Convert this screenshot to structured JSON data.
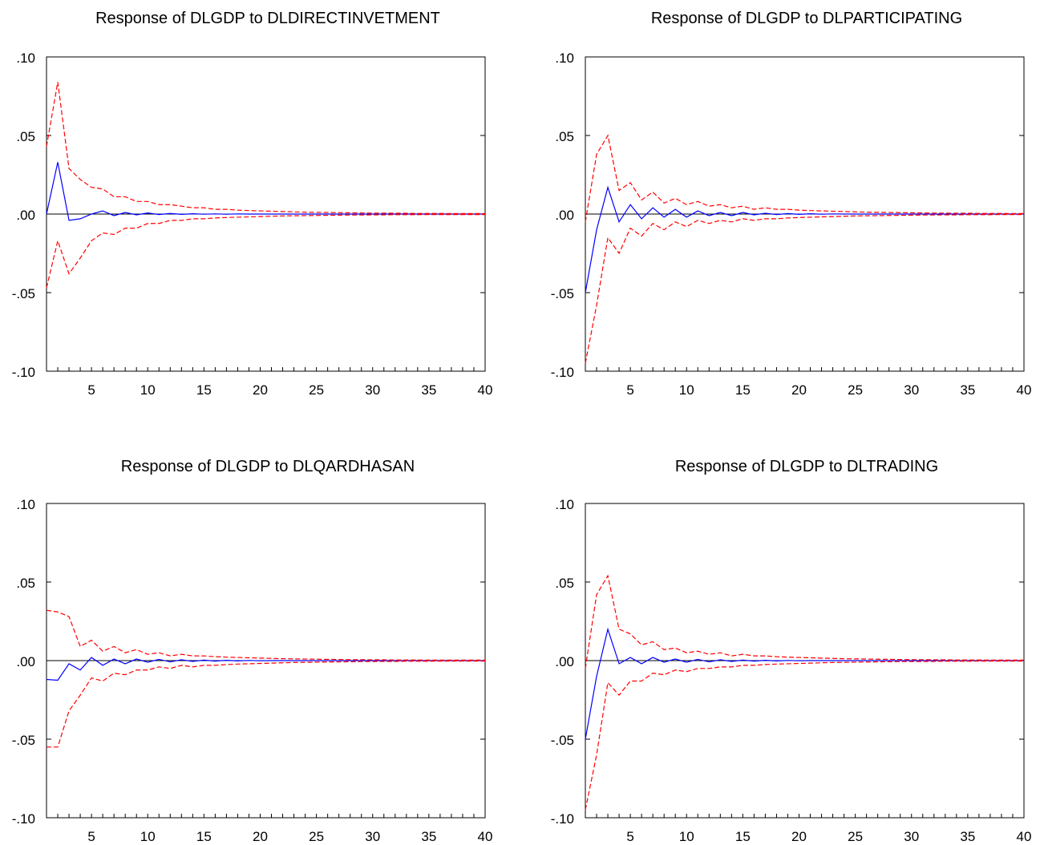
{
  "colors": {
    "response": "#0000ff",
    "band": "#ff0000",
    "zero_line": "#000000",
    "frame": "#000000"
  },
  "chart_data": [
    {
      "type": "line",
      "title": "Response of DLGDP to DLDIRECTINVETMENT",
      "xlim": [
        1,
        40
      ],
      "ylim": [
        -0.1,
        0.1
      ],
      "x_ticks": [
        5,
        10,
        15,
        20,
        25,
        30,
        35,
        40
      ],
      "y_ticks": [
        ".10",
        ".05",
        ".00",
        "-.05",
        "-.10"
      ],
      "series": [
        {
          "role": "response",
          "style": "solid",
          "values": [
            0.0,
            0.033,
            -0.004,
            -0.003,
            0.0,
            0.002,
            -0.001,
            0.001,
            -0.0005,
            0.0007,
            -0.0003,
            0.0004,
            -0.0002,
            0.0002,
            -0.0001,
            0.0001,
            -0.0001,
            0.0001,
            0.0,
            0.0,
            0.0,
            0.0,
            0.0,
            0.0,
            0.0,
            0.0,
            0.0,
            0.0,
            0.0,
            0.0,
            0.0,
            0.0,
            0.0,
            0.0,
            0.0,
            0.0,
            0.0,
            0.0,
            0.0,
            0.0
          ]
        },
        {
          "role": "upper",
          "style": "dashed",
          "values": [
            0.043,
            0.084,
            0.029,
            0.022,
            0.017,
            0.016,
            0.011,
            0.011,
            0.008,
            0.008,
            0.006,
            0.006,
            0.005,
            0.004,
            0.004,
            0.003,
            0.003,
            0.0025,
            0.0022,
            0.002,
            0.0018,
            0.0016,
            0.0014,
            0.0012,
            0.0011,
            0.001,
            0.0009,
            0.0008,
            0.0007,
            0.0006,
            0.0006,
            0.0005,
            0.0005,
            0.0004,
            0.0004,
            0.0004,
            0.0003,
            0.0003,
            0.0003,
            0.0003
          ]
        },
        {
          "role": "lower",
          "style": "dashed",
          "values": [
            -0.047,
            -0.017,
            -0.038,
            -0.028,
            -0.017,
            -0.012,
            -0.013,
            -0.009,
            -0.009,
            -0.006,
            -0.006,
            -0.004,
            -0.004,
            -0.003,
            -0.003,
            -0.0025,
            -0.0022,
            -0.002,
            -0.0018,
            -0.0016,
            -0.0014,
            -0.0012,
            -0.0011,
            -0.001,
            -0.0009,
            -0.0008,
            -0.0007,
            -0.0006,
            -0.0006,
            -0.0005,
            -0.0005,
            -0.0004,
            -0.0004,
            -0.0004,
            -0.0003,
            -0.0003,
            -0.0003,
            -0.0003,
            -0.0003,
            -0.0003
          ]
        }
      ]
    },
    {
      "type": "line",
      "title": "Response of DLGDP to DLPARTICIPATING",
      "xlim": [
        1,
        40
      ],
      "ylim": [
        -0.1,
        0.1
      ],
      "x_ticks": [
        5,
        10,
        15,
        20,
        25,
        30,
        35,
        40
      ],
      "y_ticks": [
        ".10",
        ".05",
        ".00",
        "-.05",
        "-.10"
      ],
      "series": [
        {
          "role": "response",
          "style": "solid",
          "values": [
            -0.05,
            -0.01,
            0.017,
            -0.005,
            0.006,
            -0.003,
            0.004,
            -0.002,
            0.003,
            -0.002,
            0.002,
            -0.001,
            0.001,
            -0.001,
            0.001,
            -0.0005,
            0.0005,
            -0.0003,
            0.0003,
            -0.0002,
            0.0002,
            -0.0001,
            0.0001,
            0.0,
            0.0,
            0.0,
            0.0,
            0.0,
            0.0,
            0.0,
            0.0,
            0.0,
            0.0,
            0.0,
            0.0,
            0.0,
            0.0,
            0.0,
            0.0,
            0.0
          ]
        },
        {
          "role": "upper",
          "style": "dashed",
          "values": [
            -0.005,
            0.038,
            0.05,
            0.015,
            0.02,
            0.009,
            0.014,
            0.007,
            0.01,
            0.006,
            0.008,
            0.005,
            0.006,
            0.004,
            0.005,
            0.003,
            0.004,
            0.003,
            0.003,
            0.0025,
            0.0022,
            0.002,
            0.0018,
            0.0016,
            0.0014,
            0.0012,
            0.0011,
            0.001,
            0.0009,
            0.0008,
            0.0007,
            0.0006,
            0.0006,
            0.0005,
            0.0005,
            0.0004,
            0.0004,
            0.0004,
            0.0003,
            0.0003
          ]
        },
        {
          "role": "lower",
          "style": "dashed",
          "values": [
            -0.095,
            -0.058,
            -0.015,
            -0.025,
            -0.009,
            -0.014,
            -0.006,
            -0.01,
            -0.005,
            -0.008,
            -0.004,
            -0.006,
            -0.004,
            -0.005,
            -0.003,
            -0.004,
            -0.003,
            -0.003,
            -0.0025,
            -0.0022,
            -0.002,
            -0.0018,
            -0.0016,
            -0.0014,
            -0.0012,
            -0.0011,
            -0.001,
            -0.0009,
            -0.0008,
            -0.0007,
            -0.0006,
            -0.0006,
            -0.0005,
            -0.0005,
            -0.0004,
            -0.0004,
            -0.0004,
            -0.0003,
            -0.0003,
            -0.0003
          ]
        }
      ]
    },
    {
      "type": "line",
      "title": "Response of DLGDP to DLQARDHASAN",
      "xlim": [
        1,
        40
      ],
      "ylim": [
        -0.1,
        0.1
      ],
      "x_ticks": [
        5,
        10,
        15,
        20,
        25,
        30,
        35,
        40
      ],
      "y_ticks": [
        ".10",
        ".05",
        ".00",
        "-.05",
        "-.10"
      ],
      "series": [
        {
          "role": "response",
          "style": "solid",
          "values": [
            -0.012,
            -0.0125,
            -0.002,
            -0.006,
            0.002,
            -0.003,
            0.001,
            -0.002,
            0.001,
            -0.001,
            0.0008,
            -0.0008,
            0.0005,
            -0.0005,
            0.0003,
            -0.0003,
            0.0002,
            -0.0002,
            0.0001,
            -0.0001,
            0.0,
            0.0,
            0.0,
            0.0,
            0.0,
            0.0,
            0.0,
            0.0,
            0.0,
            0.0,
            0.0,
            0.0,
            0.0,
            0.0,
            0.0,
            0.0,
            0.0,
            0.0,
            0.0,
            0.0
          ]
        },
        {
          "role": "upper",
          "style": "dashed",
          "values": [
            0.032,
            0.031,
            0.028,
            0.009,
            0.013,
            0.006,
            0.009,
            0.005,
            0.007,
            0.004,
            0.005,
            0.003,
            0.004,
            0.003,
            0.003,
            0.0025,
            0.0022,
            0.002,
            0.0018,
            0.0016,
            0.0014,
            0.0012,
            0.0011,
            0.001,
            0.0009,
            0.0008,
            0.0007,
            0.0006,
            0.0006,
            0.0005,
            0.0005,
            0.0004,
            0.0004,
            0.0004,
            0.0003,
            0.0003,
            0.0003,
            0.0003,
            0.0003,
            0.0003
          ]
        },
        {
          "role": "lower",
          "style": "dashed",
          "values": [
            -0.055,
            -0.055,
            -0.032,
            -0.022,
            -0.011,
            -0.013,
            -0.008,
            -0.009,
            -0.006,
            -0.006,
            -0.004,
            -0.005,
            -0.003,
            -0.004,
            -0.003,
            -0.003,
            -0.0025,
            -0.0022,
            -0.002,
            -0.0018,
            -0.0016,
            -0.0014,
            -0.0012,
            -0.0011,
            -0.001,
            -0.0009,
            -0.0008,
            -0.0007,
            -0.0006,
            -0.0006,
            -0.0005,
            -0.0005,
            -0.0004,
            -0.0004,
            -0.0004,
            -0.0003,
            -0.0003,
            -0.0003,
            -0.0003,
            -0.0003
          ]
        }
      ]
    },
    {
      "type": "line",
      "title": "Response of DLGDP to DLTRADING",
      "xlim": [
        1,
        40
      ],
      "ylim": [
        -0.1,
        0.1
      ],
      "x_ticks": [
        5,
        10,
        15,
        20,
        25,
        30,
        35,
        40
      ],
      "y_ticks": [
        ".10",
        ".05",
        ".00",
        "-.05",
        "-.10"
      ],
      "series": [
        {
          "role": "response",
          "style": "solid",
          "values": [
            -0.05,
            -0.01,
            0.02,
            -0.002,
            0.002,
            -0.002,
            0.002,
            -0.001,
            0.001,
            -0.001,
            0.0008,
            -0.0008,
            0.0005,
            -0.0005,
            0.0003,
            -0.0003,
            0.0002,
            -0.0002,
            0.0001,
            -0.0001,
            0.0,
            0.0,
            0.0,
            0.0,
            0.0,
            0.0,
            0.0,
            0.0,
            0.0,
            0.0,
            0.0,
            0.0,
            0.0,
            0.0,
            0.0,
            0.0,
            0.0,
            0.0,
            0.0,
            0.0
          ]
        },
        {
          "role": "upper",
          "style": "dashed",
          "values": [
            -0.005,
            0.042,
            0.054,
            0.02,
            0.017,
            0.01,
            0.012,
            0.007,
            0.008,
            0.005,
            0.006,
            0.004,
            0.005,
            0.003,
            0.004,
            0.003,
            0.003,
            0.0025,
            0.0022,
            0.002,
            0.0018,
            0.0016,
            0.0014,
            0.0012,
            0.0011,
            0.001,
            0.0009,
            0.0008,
            0.0007,
            0.0006,
            0.0006,
            0.0005,
            0.0005,
            0.0004,
            0.0004,
            0.0004,
            0.0003,
            0.0003,
            0.0003,
            0.0003
          ]
        },
        {
          "role": "lower",
          "style": "dashed",
          "values": [
            -0.095,
            -0.06,
            -0.014,
            -0.022,
            -0.013,
            -0.013,
            -0.008,
            -0.009,
            -0.006,
            -0.007,
            -0.005,
            -0.005,
            -0.004,
            -0.004,
            -0.003,
            -0.003,
            -0.0025,
            -0.0022,
            -0.002,
            -0.0018,
            -0.0016,
            -0.0014,
            -0.0012,
            -0.0011,
            -0.001,
            -0.0009,
            -0.0008,
            -0.0007,
            -0.0006,
            -0.0006,
            -0.0005,
            -0.0005,
            -0.0004,
            -0.0004,
            -0.0004,
            -0.0003,
            -0.0003,
            -0.0003,
            -0.0003,
            -0.0003
          ]
        }
      ]
    }
  ]
}
